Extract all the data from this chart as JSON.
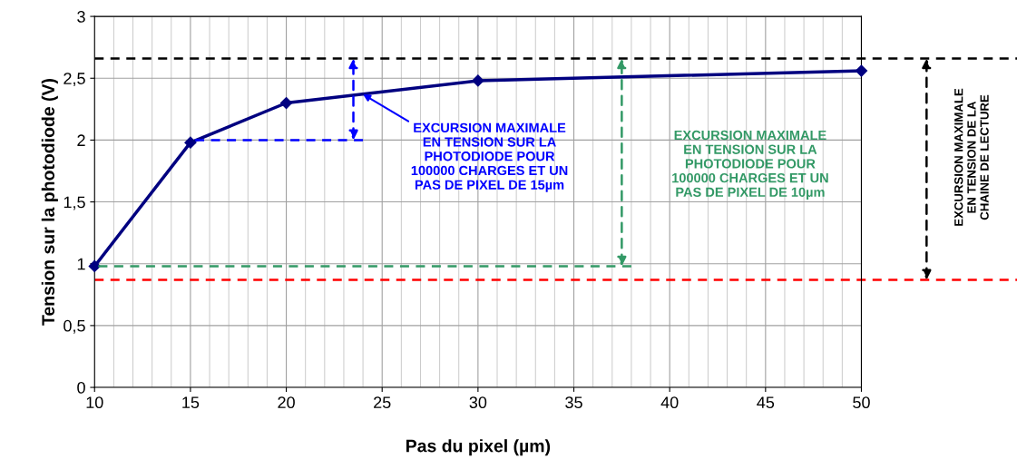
{
  "chart_data": {
    "type": "line",
    "xlabel": "Pas du pixel (µm)",
    "ylabel": "Tension sur la photodiode (V)",
    "x": [
      10,
      15,
      20,
      30,
      50
    ],
    "series": [
      {
        "color": "#000080",
        "values": [
          0.98,
          1.98,
          2.3,
          2.48,
          2.56
        ],
        "marker": "diamond",
        "line_style": "solid"
      },
      {
        "type": "line",
        "color": "#0000ff",
        "x": [
          15,
          24
        ],
        "values": [
          2.0,
          2.0
        ],
        "marker": "none",
        "line_style": "dashed"
      },
      {
        "type": "line",
        "color": "#339966",
        "x": [
          10,
          38
        ],
        "values": [
          0.98,
          0.98
        ],
        "marker": "none",
        "line_style": "dashed"
      }
    ],
    "xlim": [
      10,
      50
    ],
    "xticks": [
      10,
      15,
      20,
      25,
      30,
      35,
      40,
      45,
      50
    ],
    "ylim": [
      0,
      3
    ],
    "yticks": [
      0,
      {
        "value": 0.5,
        "label": "0,5"
      },
      1,
      {
        "value": 1.5,
        "label": "1,5"
      },
      2,
      {
        "value": 2.5,
        "label": "2,5"
      },
      3
    ],
    "grid": true,
    "ref_lines": [
      {
        "axis": "y",
        "value": 2.66,
        "color": "#000000",
        "line_style": "dashed"
      },
      {
        "axis": "y",
        "value": 0.87,
        "color": "#ff0000",
        "line_style": "dashed"
      }
    ],
    "annotations": [
      {
        "text": "EXCURSION MAXIMALE\nEN TENSION SUR LA\nPHOTODIODE POUR\n100000 CHARGES ET UN\nPAS DE PIXEL DE 15µm",
        "x": 24,
        "y": 2.37
      },
      "EXCURSION MAXIMALE\nEN TENSION SUR LA\nPHOTODIODE POUR\n100000 CHARGES ET UN\nPAS DE PIXEL DE 10µm",
      "EXCURSION MAXIMALE\nEN TENSION DE LA\nCHAINE DE LECTURE"
    ]
  }
}
